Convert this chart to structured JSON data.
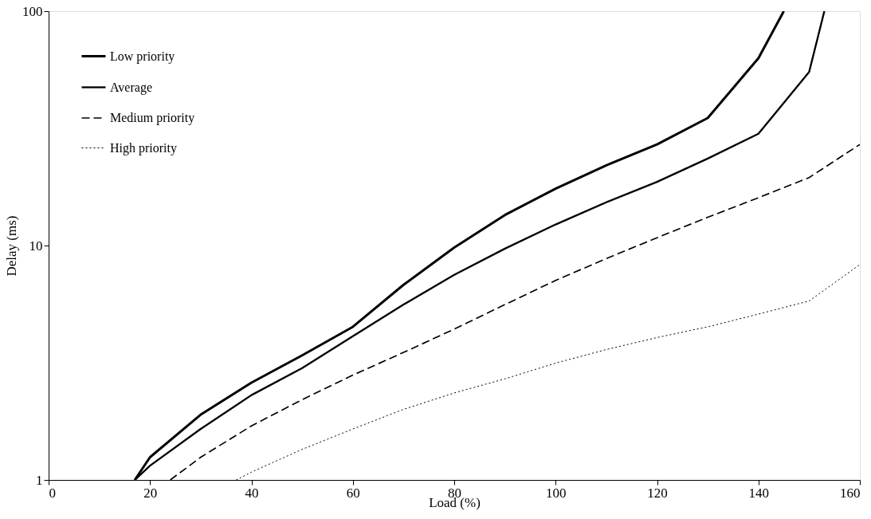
{
  "chart_data": {
    "type": "line",
    "xlabel": "Load (%)",
    "ylabel": "Delay (ms)",
    "log": "y",
    "xlim": [
      0,
      160
    ],
    "xticks": [
      0,
      20,
      40,
      60,
      80,
      100,
      120,
      140,
      160
    ],
    "ylim": [
      1,
      100
    ],
    "yticks": [
      1,
      10,
      100
    ],
    "grid": false,
    "legend": "top left",
    "series": [
      {
        "name": "Low priority",
        "color": "#000000",
        "line_style": "solid",
        "x": [
          17,
          20,
          30,
          40,
          50,
          60,
          70,
          80,
          90,
          100,
          110,
          120,
          130,
          140,
          145
        ],
        "values": [
          1,
          1.25,
          1.9,
          2.6,
          3.4,
          4.5,
          6.8,
          9.8,
          13.5,
          17.5,
          22,
          27,
          35,
          63,
          100
        ]
      },
      {
        "name": "Average",
        "color": "#000000",
        "line_style": "solid",
        "x": [
          17,
          20,
          30,
          40,
          50,
          60,
          70,
          80,
          90,
          100,
          110,
          120,
          130,
          140,
          150,
          153
        ],
        "values": [
          1,
          1.15,
          1.65,
          2.3,
          3.0,
          4.1,
          5.6,
          7.5,
          9.7,
          12.3,
          15.3,
          18.7,
          23.5,
          30,
          55,
          100
        ]
      },
      {
        "name": "Medium priority",
        "color": "#000000",
        "line_style": "dashed",
        "x": [
          24,
          30,
          40,
          50,
          60,
          70,
          80,
          90,
          100,
          110,
          120,
          130,
          140,
          150,
          160
        ],
        "values": [
          1,
          1.25,
          1.7,
          2.2,
          2.8,
          3.5,
          4.4,
          5.6,
          7.1,
          8.8,
          10.8,
          13.2,
          16,
          19.5,
          27
        ]
      },
      {
        "name": "High priority",
        "color": "#000000",
        "line_style": "dotted",
        "x": [
          37,
          40,
          50,
          60,
          70,
          80,
          90,
          100,
          110,
          120,
          130,
          140,
          150,
          160
        ],
        "values": [
          1,
          1.08,
          1.35,
          1.65,
          2.0,
          2.35,
          2.7,
          3.15,
          3.6,
          4.05,
          4.5,
          5.1,
          5.8,
          8.3
        ]
      }
    ]
  }
}
